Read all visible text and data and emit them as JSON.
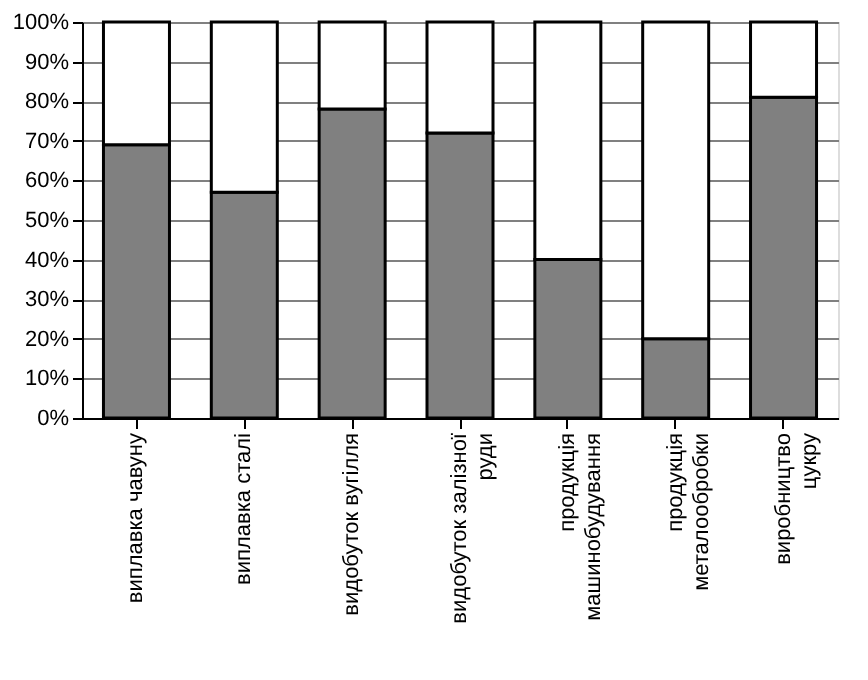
{
  "chart_data": {
    "type": "bar",
    "stacked": true,
    "categories": [
      "виплавка чавуну",
      "виплавка сталі",
      "видобуток вугілля",
      "видобуток залізної\nруди",
      "продукція\nмашинобудування",
      "продукція\nметалообробки",
      "виробництво\nцукру"
    ],
    "series": [
      {
        "color": "#808080",
        "values": [
          69,
          57,
          78,
          72,
          40,
          20,
          81
        ]
      },
      {
        "color": "#ffffff",
        "values": [
          31,
          43,
          22,
          28,
          60,
          80,
          19
        ]
      }
    ],
    "ylim": [
      0,
      100
    ],
    "yticks": [
      {
        "value": 0,
        "label": "0%"
      },
      {
        "value": 10,
        "label": "10%"
      },
      {
        "value": 20,
        "label": "20%"
      },
      {
        "value": 30,
        "label": "30%"
      },
      {
        "value": 40,
        "label": "40%"
      },
      {
        "value": 50,
        "label": "50%"
      },
      {
        "value": 60,
        "label": "60%"
      },
      {
        "value": 70,
        "label": "70%"
      },
      {
        "value": 80,
        "label": "80%"
      },
      {
        "value": 90,
        "label": "90%"
      },
      {
        "value": 100,
        "label": "100%"
      }
    ],
    "grid": "y"
  }
}
